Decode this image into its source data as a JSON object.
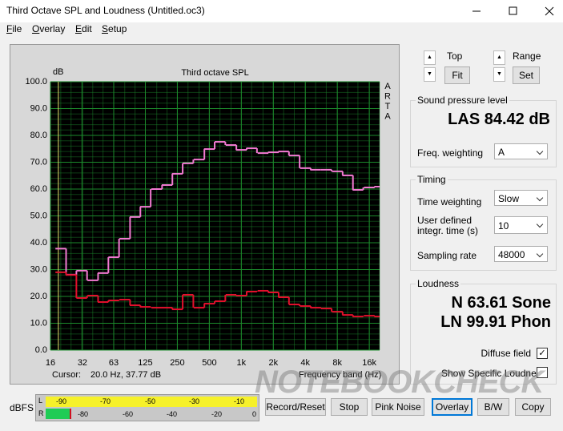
{
  "window": {
    "title": "Third Octave SPL and Loudness (Untitled.oc3)",
    "menu": [
      "File",
      "Overlay",
      "Edit",
      "Setup"
    ],
    "watermark": "NOTEBOOKCHECK"
  },
  "chart_data": {
    "type": "line",
    "step": true,
    "title": "Third octave SPL",
    "y_unit_label": "dB",
    "xlabel": "Frequency band (Hz)",
    "side_label": "ARTA",
    "cursor_label": "Cursor:",
    "cursor_readout": "20.0 Hz, 37.77 dB",
    "xscale": "log",
    "grid": true,
    "background": "#000000",
    "grid_color": "#1c8a2c",
    "x": [
      20,
      25,
      31.5,
      40,
      50,
      63,
      80,
      100,
      125,
      160,
      200,
      250,
      315,
      400,
      500,
      630,
      800,
      1000,
      1250,
      1600,
      2000,
      2500,
      3150,
      4000,
      5000,
      6300,
      8000,
      10000,
      12500,
      16000,
      20000
    ],
    "series": [
      {
        "color": "#f27ad2",
        "values": [
          37.8,
          28.1,
          29.6,
          26,
          28.7,
          34.6,
          41.5,
          49.6,
          53.4,
          60,
          61.5,
          65.7,
          69.6,
          71,
          74.9,
          77.6,
          76.4,
          74.6,
          75.2,
          73.4,
          73.7,
          74,
          72.5,
          67.8,
          67.2,
          67.2,
          66.6,
          65.1,
          59.7,
          60.6,
          60.9
        ]
      },
      {
        "color": "#e3102c",
        "values": [
          29,
          28,
          19.4,
          20.3,
          17.9,
          18.5,
          18.8,
          16.7,
          16.1,
          15.8,
          15.8,
          15.2,
          20.6,
          15.8,
          17.3,
          18.2,
          20.6,
          20.3,
          21.8,
          22.1,
          21.5,
          19.7,
          17,
          16.4,
          15.8,
          15.5,
          14.3,
          13.1,
          12.5,
          12.8,
          12.5
        ]
      }
    ],
    "xlim": [
      16,
      20000
    ],
    "ylim": [
      0,
      100
    ],
    "xticks": [
      16,
      32,
      63,
      125,
      250,
      500,
      {
        "value": 1000,
        "label": "1k"
      },
      {
        "value": 2000,
        "label": "2k"
      },
      {
        "value": 4000,
        "label": "4k"
      },
      {
        "value": 8000,
        "label": "8k"
      },
      {
        "value": 16000,
        "label": "16k"
      }
    ],
    "yticks": [
      {
        "value": 0,
        "label": "0.0"
      },
      {
        "value": 10,
        "label": "10.0"
      },
      {
        "value": 20,
        "label": "20.0"
      },
      {
        "value": 30,
        "label": "30.0"
      },
      {
        "value": 40,
        "label": "40.0"
      },
      {
        "value": 50,
        "label": "50.0"
      },
      {
        "value": 60,
        "label": "60.0"
      },
      {
        "value": 70,
        "label": "70.0"
      },
      {
        "value": 80,
        "label": "80.0"
      },
      {
        "value": 90,
        "label": "90.0"
      },
      {
        "value": 100,
        "label": "100.0"
      }
    ]
  },
  "controls": {
    "top": "Top",
    "fit": "Fit",
    "range": "Range",
    "set": "Set",
    "spl": {
      "group": "Sound pressure level",
      "reading": "LAS 84.42 dB",
      "freq_weighting": "Freq. weighting",
      "freq_weighting_value": "A"
    },
    "timing": {
      "group": "Timing",
      "time_weighting": "Time weighting",
      "time_weighting_value": "Slow",
      "integr_line1": "User defined",
      "integr_line2": "integr. time (s)",
      "integr_value": "10",
      "sampling_rate": "Sampling rate",
      "sampling_rate_value": "48000"
    },
    "loudness": {
      "group": "Loudness",
      "sone": "N 63.61 Sone",
      "phon": "LN 99.91 Phon",
      "diffuse": "Diffuse field",
      "specific": "Show Specific Loudness"
    }
  },
  "meter": {
    "label": "dBFS",
    "left": "L",
    "right": "R",
    "top_scale": [
      "-90",
      "-70",
      "-50",
      "-30",
      "-10"
    ],
    "bottom_scale": [
      "-80",
      "-60",
      "-40",
      "-20",
      "0"
    ]
  },
  "buttons": [
    "Record/Reset",
    "Stop",
    "Pink Noise",
    "Overlay",
    "B/W",
    "Copy"
  ]
}
